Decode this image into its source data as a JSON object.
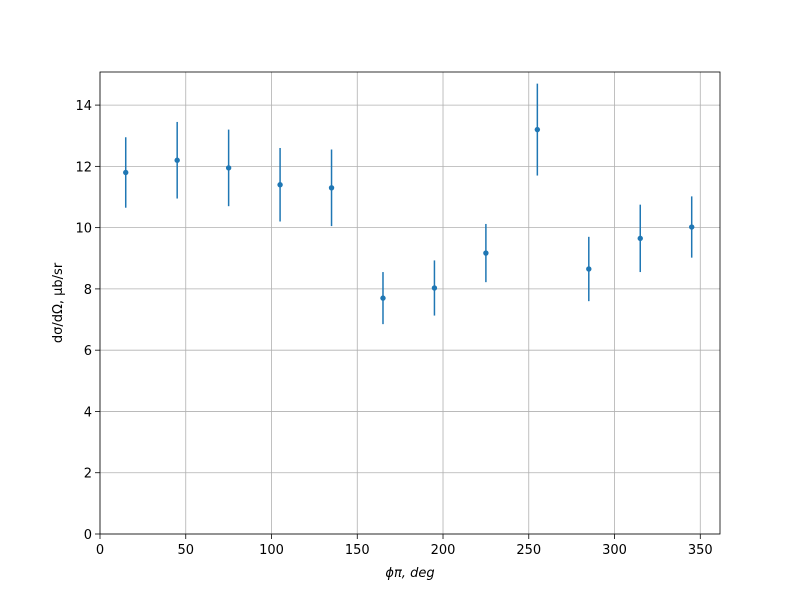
{
  "chart_data": {
    "type": "errorbar",
    "xlabel": "ϕπ, deg",
    "ylabel": "dσ/dΩ, μb/sr",
    "x": [
      15,
      45,
      75,
      105,
      135,
      165,
      195,
      225,
      255,
      285,
      315,
      345
    ],
    "values": [
      11.8,
      12.2,
      11.95,
      11.4,
      11.3,
      7.7,
      8.03,
      9.17,
      13.2,
      8.65,
      9.65,
      10.02
    ],
    "errors": [
      1.15,
      1.25,
      1.25,
      1.2,
      1.25,
      0.85,
      0.9,
      0.95,
      1.5,
      1.05,
      1.1,
      1.0
    ],
    "color": "#1f77b4",
    "xlim": [
      0,
      361.5
    ],
    "xticks": [
      0,
      50,
      100,
      150,
      200,
      250,
      300,
      350
    ],
    "ylim": [
      0,
      15.08
    ],
    "yticks": [
      0,
      2,
      4,
      6,
      8,
      10,
      12,
      14
    ],
    "grid": true
  }
}
